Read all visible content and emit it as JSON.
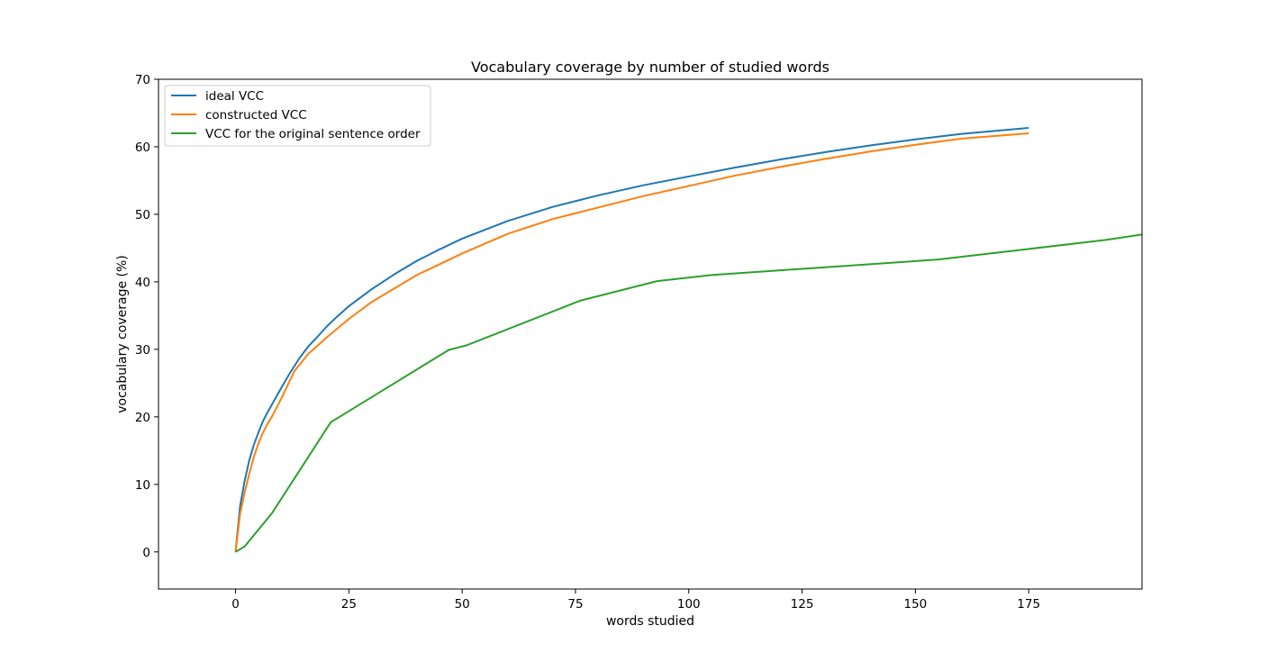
{
  "chart_data": {
    "type": "line",
    "title": "Vocabulary coverage by number of studied words",
    "xlabel": "words studied",
    "ylabel": "vocabulary coverage (%)",
    "xlim": [
      -17,
      200
    ],
    "ylim": [
      -5.5,
      70
    ],
    "xticks": [
      0,
      25,
      50,
      75,
      100,
      125,
      150,
      175
    ],
    "yticks": [
      0,
      10,
      20,
      30,
      40,
      50,
      60,
      70
    ],
    "grid": false,
    "legend": "upper-left",
    "series": [
      {
        "name": "ideal VCC",
        "color": "#1f77b4",
        "x": [
          0,
          1,
          2,
          3,
          4,
          5,
          6,
          7,
          8,
          9,
          10,
          12,
          14,
          16,
          18,
          20,
          22,
          25,
          30,
          35,
          40,
          45,
          50,
          60,
          70,
          80,
          90,
          100,
          110,
          120,
          130,
          140,
          150,
          160,
          175
        ],
        "y": [
          0,
          6.8,
          10.5,
          13.5,
          15.8,
          17.6,
          19.3,
          20.6,
          21.8,
          23.0,
          24.2,
          26.5,
          28.6,
          30.4,
          31.8,
          33.3,
          34.6,
          36.4,
          38.9,
          41.1,
          43.1,
          44.8,
          46.4,
          49.0,
          51.1,
          52.8,
          54.3,
          55.6,
          56.9,
          58.1,
          59.2,
          60.2,
          61.1,
          61.9,
          62.8
        ]
      },
      {
        "name": "constructed VCC",
        "color": "#ff7f0e",
        "x": [
          0,
          1,
          2,
          3,
          4,
          5,
          6,
          7,
          8,
          10,
          13,
          16,
          20,
          25,
          30,
          35,
          40,
          45,
          50,
          60,
          70,
          80,
          90,
          100,
          110,
          120,
          130,
          140,
          150,
          160,
          175
        ],
        "y": [
          0,
          5.6,
          8.8,
          11.5,
          14.0,
          16.0,
          17.6,
          18.9,
          20.0,
          22.6,
          26.8,
          29.3,
          31.7,
          34.5,
          37.0,
          39.0,
          41.0,
          42.6,
          44.2,
          47.1,
          49.3,
          51.0,
          52.7,
          54.2,
          55.7,
          57.0,
          58.2,
          59.3,
          60.3,
          61.2,
          62.0
        ]
      },
      {
        "name": "VCC for the original sentence order",
        "color": "#2ca02c",
        "x": [
          0,
          2,
          8,
          21,
          47,
          51,
          76,
          93,
          105,
          155,
          192,
          200
        ],
        "y": [
          0,
          0.8,
          5.7,
          19.2,
          29.9,
          30.6,
          37.2,
          40.1,
          41.0,
          43.3,
          46.2,
          47.0
        ]
      }
    ]
  }
}
